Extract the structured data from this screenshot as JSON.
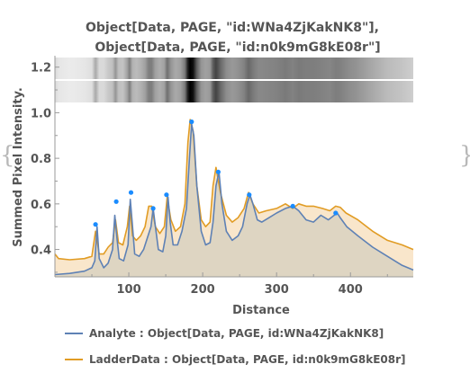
{
  "brace_left": "{",
  "brace_right": "}",
  "title": [
    "Object[Data, PAGE, \"id:WNa4ZjKakNK8\"],",
    "Object[Data, PAGE, \"id:n0k9mG8kE08r\"]"
  ],
  "colors": {
    "analyte": "#5e81b5",
    "analyte_fill": "#d9d1c1",
    "ladder": "#e19c24",
    "ladder_fill": "#f9e6cb",
    "axis": "#9a9a9a",
    "peak_marker": "#1a8cff"
  },
  "chart_data": {
    "type": "area",
    "title": "Object[Data, PAGE, \"id:WNa4ZjKakNK8\"], Object[Data, PAGE, \"id:n0k9mG8kE08r\"]",
    "xlabel": "Distance",
    "ylabel": "Summed Pixel Intensity.",
    "xlim": [
      0,
      485
    ],
    "ylim": [
      0.28,
      1.25
    ],
    "xticks": [
      100,
      200,
      300,
      400
    ],
    "yticks": [
      0.4,
      0.6,
      0.8,
      1.0,
      1.2
    ],
    "ytick_labels": [
      "0.4",
      "0.6",
      "0.8",
      "1.0",
      "1.2"
    ],
    "grid": false,
    "legend_position": "bottom",
    "gel_image_strips": 2,
    "series": [
      {
        "name": "Analyte : Object[Data, PAGE, id:WNa4ZjKakNK8]",
        "key": "analyte",
        "x": [
          0,
          20,
          40,
          50,
          54,
          57,
          60,
          66,
          72,
          78,
          81,
          84,
          87,
          93,
          99,
          102,
          105,
          108,
          114,
          120,
          126,
          130,
          133,
          136,
          140,
          146,
          150,
          153,
          156,
          160,
          166,
          172,
          178,
          182,
          185,
          188,
          192,
          198,
          204,
          210,
          214,
          218,
          222,
          226,
          232,
          240,
          248,
          254,
          260,
          264,
          268,
          274,
          280,
          290,
          300,
          312,
          322,
          330,
          340,
          350,
          360,
          370,
          378,
          382,
          386,
          395,
          410,
          430,
          450,
          470,
          485
        ],
        "y": [
          0.29,
          0.295,
          0.305,
          0.32,
          0.35,
          0.5,
          0.36,
          0.32,
          0.34,
          0.4,
          0.55,
          0.45,
          0.36,
          0.35,
          0.42,
          0.62,
          0.5,
          0.38,
          0.37,
          0.4,
          0.46,
          0.5,
          0.58,
          0.5,
          0.4,
          0.39,
          0.46,
          0.63,
          0.52,
          0.42,
          0.42,
          0.48,
          0.58,
          0.8,
          0.95,
          0.9,
          0.68,
          0.48,
          0.42,
          0.43,
          0.52,
          0.68,
          0.74,
          0.6,
          0.48,
          0.44,
          0.46,
          0.5,
          0.6,
          0.64,
          0.6,
          0.53,
          0.52,
          0.54,
          0.56,
          0.58,
          0.59,
          0.57,
          0.53,
          0.52,
          0.55,
          0.53,
          0.55,
          0.56,
          0.54,
          0.5,
          0.46,
          0.41,
          0.37,
          0.33,
          0.31
        ]
      },
      {
        "name": "LadderData : Object[Data, PAGE, id:n0k9mG8kE08r]",
        "key": "ladder",
        "x": [
          0,
          5,
          20,
          40,
          50,
          55,
          60,
          66,
          72,
          78,
          82,
          86,
          92,
          98,
          101,
          105,
          110,
          116,
          122,
          127,
          131,
          136,
          142,
          148,
          152,
          157,
          163,
          170,
          176,
          180,
          183,
          187,
          192,
          198,
          204,
          210,
          214,
          218,
          224,
          232,
          240,
          248,
          256,
          262,
          268,
          276,
          286,
          300,
          312,
          322,
          330,
          340,
          350,
          362,
          372,
          380,
          386,
          394,
          410,
          430,
          450,
          470,
          485
        ],
        "y": [
          0.38,
          0.36,
          0.355,
          0.36,
          0.37,
          0.48,
          0.38,
          0.38,
          0.41,
          0.43,
          0.53,
          0.43,
          0.42,
          0.5,
          0.59,
          0.46,
          0.44,
          0.46,
          0.5,
          0.59,
          0.59,
          0.5,
          0.47,
          0.5,
          0.63,
          0.53,
          0.48,
          0.5,
          0.6,
          0.87,
          0.97,
          0.92,
          0.68,
          0.53,
          0.5,
          0.52,
          0.68,
          0.76,
          0.65,
          0.55,
          0.52,
          0.54,
          0.58,
          0.65,
          0.6,
          0.56,
          0.57,
          0.58,
          0.6,
          0.58,
          0.6,
          0.59,
          0.59,
          0.58,
          0.57,
          0.59,
          0.585,
          0.56,
          0.53,
          0.48,
          0.44,
          0.42,
          0.4
        ]
      }
    ],
    "peak_markers": {
      "x": [
        55,
        83,
        103,
        133,
        151,
        185,
        221,
        263,
        322,
        380
      ],
      "y": [
        0.51,
        0.61,
        0.65,
        0.58,
        0.64,
        0.96,
        0.74,
        0.64,
        0.59,
        0.56
      ]
    }
  }
}
